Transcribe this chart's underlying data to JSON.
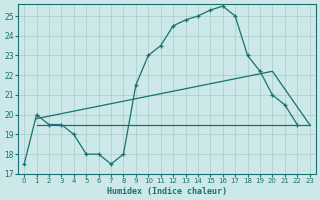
{
  "background_color": "#cce8e8",
  "line_color": "#1a7070",
  "grid_color": "#a8cccc",
  "xlabel": "Humidex (Indice chaleur)",
  "xlim": [
    -0.5,
    23.5
  ],
  "ylim": [
    17.0,
    25.6
  ],
  "yticks": [
    17,
    18,
    19,
    20,
    21,
    22,
    23,
    24,
    25
  ],
  "xticks": [
    0,
    1,
    2,
    3,
    4,
    5,
    6,
    7,
    8,
    9,
    10,
    11,
    12,
    13,
    14,
    15,
    16,
    17,
    18,
    19,
    20,
    21,
    22,
    23
  ],
  "curve1_x": [
    0,
    1,
    2,
    3,
    4,
    5,
    6,
    7,
    8,
    9,
    10,
    11,
    12,
    13,
    14,
    15,
    16,
    17,
    18,
    19,
    20,
    21,
    22
  ],
  "curve1_y": [
    17.5,
    20.0,
    19.5,
    19.5,
    19.0,
    18.0,
    18.0,
    17.5,
    18.0,
    21.5,
    23.0,
    23.5,
    24.5,
    24.8,
    25.0,
    25.3,
    25.5,
    25.0,
    23.0,
    22.2,
    21.0,
    20.5,
    19.5
  ],
  "curve2_x": [
    1,
    20,
    23
  ],
  "curve2_y": [
    19.8,
    22.2,
    19.5
  ],
  "curve3_x": [
    1,
    23
  ],
  "curve3_y": [
    19.5,
    19.5
  ]
}
